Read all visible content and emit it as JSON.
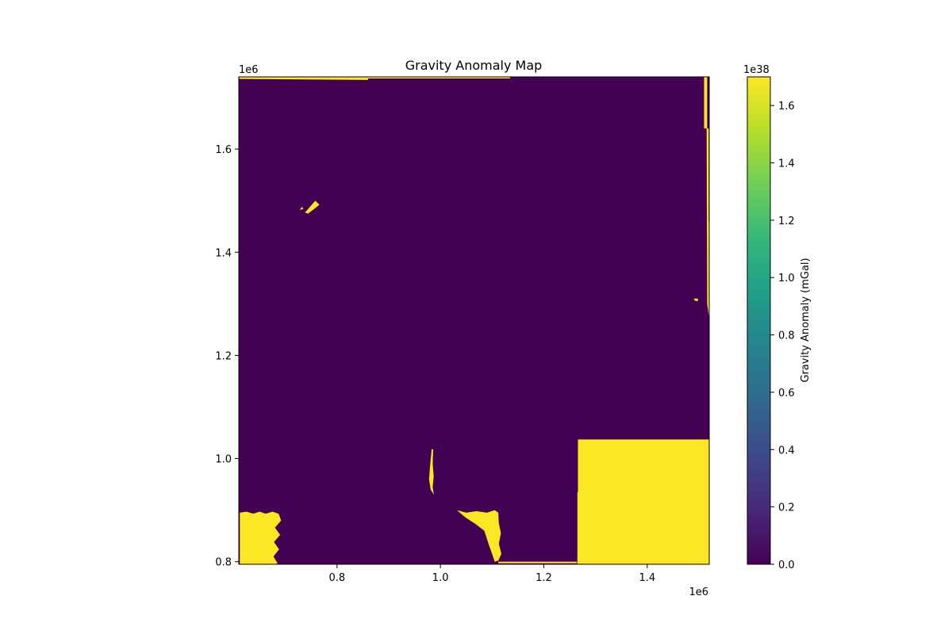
{
  "chart_data": {
    "type": "heatmap",
    "title": "Gravity Anomaly Map",
    "xlabel": "",
    "ylabel": "",
    "x_offset_label": "1e6",
    "y_offset_label": "1e6",
    "xlim": [
      0.61,
      1.52
    ],
    "ylim": [
      0.795,
      1.74
    ],
    "x_ticks": [
      {
        "value": 0.8,
        "label": "0.8"
      },
      {
        "value": 1.0,
        "label": "1.0"
      },
      {
        "value": 1.2,
        "label": "1.2"
      },
      {
        "value": 1.4,
        "label": "1.4"
      }
    ],
    "y_ticks": [
      {
        "value": 0.8,
        "label": "0.8"
      },
      {
        "value": 1.0,
        "label": "1.0"
      },
      {
        "value": 1.2,
        "label": "1.2"
      },
      {
        "value": 1.4,
        "label": "1.4"
      },
      {
        "value": 1.6,
        "label": "1.6"
      }
    ],
    "grid": false,
    "colormap": "viridis",
    "background_value": 0.0,
    "background_color": "#440154",
    "high_color": "#fde725",
    "high_regions": [
      {
        "name": "southeast-block",
        "value": 1.7,
        "points": [
          [
            1.265,
            0.8
          ],
          [
            1.265,
            0.935
          ],
          [
            1.266,
            0.935
          ],
          [
            1.266,
            1.037
          ],
          [
            1.52,
            1.037
          ],
          [
            1.52,
            0.795
          ],
          [
            1.265,
            0.795
          ]
        ]
      },
      {
        "name": "southwest-block",
        "value": 1.7,
        "points": [
          [
            0.612,
            0.795
          ],
          [
            0.612,
            0.895
          ],
          [
            0.625,
            0.897
          ],
          [
            0.638,
            0.893
          ],
          [
            0.65,
            0.897
          ],
          [
            0.662,
            0.893
          ],
          [
            0.675,
            0.897
          ],
          [
            0.687,
            0.893
          ],
          [
            0.692,
            0.88
          ],
          [
            0.68,
            0.866
          ],
          [
            0.69,
            0.852
          ],
          [
            0.678,
            0.838
          ],
          [
            0.688,
            0.824
          ],
          [
            0.677,
            0.81
          ],
          [
            0.685,
            0.797
          ],
          [
            0.68,
            0.795
          ]
        ]
      },
      {
        "name": "south-central-block",
        "value": 1.7,
        "points": [
          [
            1.032,
            0.9
          ],
          [
            1.05,
            0.895
          ],
          [
            1.07,
            0.898
          ],
          [
            1.09,
            0.895
          ],
          [
            1.105,
            0.9
          ],
          [
            1.112,
            0.895
          ],
          [
            1.113,
            0.875
          ],
          [
            1.117,
            0.855
          ],
          [
            1.113,
            0.835
          ],
          [
            1.118,
            0.815
          ],
          [
            1.112,
            0.802
          ],
          [
            1.105,
            0.8
          ],
          [
            1.1,
            0.815
          ],
          [
            1.093,
            0.835
          ],
          [
            1.085,
            0.86
          ],
          [
            1.068,
            0.873
          ],
          [
            1.048,
            0.886
          ]
        ]
      },
      {
        "name": "south-edge-strip",
        "value": 1.7,
        "points": [
          [
            1.112,
            0.797
          ],
          [
            1.264,
            0.797
          ],
          [
            1.264,
            0.8
          ],
          [
            1.112,
            0.8
          ]
        ]
      },
      {
        "name": "central-speckles",
        "value": 1.7,
        "points": [
          [
            0.983,
            1.018
          ],
          [
            0.986,
            1.018
          ],
          [
            0.985,
            0.99
          ],
          [
            0.987,
            0.965
          ],
          [
            0.985,
            0.945
          ],
          [
            0.987,
            0.93
          ],
          [
            0.981,
            0.94
          ],
          [
            0.978,
            0.96
          ],
          [
            0.98,
            0.985
          ]
        ]
      },
      {
        "name": "northwest-patch",
        "value": 1.7,
        "points": [
          [
            0.738,
            1.477
          ],
          [
            0.752,
            1.493
          ],
          [
            0.758,
            1.5
          ],
          [
            0.766,
            1.492
          ],
          [
            0.756,
            1.484
          ],
          [
            0.744,
            1.475
          ]
        ]
      },
      {
        "name": "northwest-speck",
        "value": 1.7,
        "points": [
          [
            0.728,
            1.482
          ],
          [
            0.732,
            1.488
          ],
          [
            0.735,
            1.484
          ]
        ]
      },
      {
        "name": "north-edge-strip",
        "value": 1.7,
        "points": [
          [
            0.611,
            1.74
          ],
          [
            0.86,
            1.74
          ],
          [
            0.86,
            1.734
          ],
          [
            0.611,
            1.736
          ]
        ]
      },
      {
        "name": "north-edge-strip-2",
        "value": 1.7,
        "points": [
          [
            0.86,
            1.74
          ],
          [
            1.135,
            1.74
          ],
          [
            1.135,
            1.737
          ],
          [
            0.86,
            1.737
          ]
        ]
      },
      {
        "name": "east-edge-strip",
        "value": 1.7,
        "points": [
          [
            1.51,
            1.74
          ],
          [
            1.516,
            1.74
          ],
          [
            1.516,
            1.64
          ],
          [
            1.519,
            1.64
          ],
          [
            1.519,
            1.46
          ],
          [
            1.52,
            1.46
          ],
          [
            1.52,
            1.27
          ],
          [
            1.516,
            1.3
          ],
          [
            1.515,
            1.64
          ],
          [
            1.51,
            1.64
          ]
        ]
      },
      {
        "name": "east-speck",
        "value": 1.7,
        "points": [
          [
            1.49,
            1.31
          ],
          [
            1.498,
            1.31
          ],
          [
            1.498,
            1.305
          ],
          [
            1.492,
            1.306
          ]
        ]
      }
    ],
    "colorbar": {
      "label": "Gravity Anomaly (mGal)",
      "offset_label": "1e38",
      "min": 0.0,
      "max": 1.7,
      "ticks": [
        {
          "value": 0.0,
          "label": "0.0"
        },
        {
          "value": 0.2,
          "label": "0.2"
        },
        {
          "value": 0.4,
          "label": "0.4"
        },
        {
          "value": 0.6,
          "label": "0.6"
        },
        {
          "value": 0.8,
          "label": "0.8"
        },
        {
          "value": 1.0,
          "label": "1.0"
        },
        {
          "value": 1.2,
          "label": "1.2"
        },
        {
          "value": 1.4,
          "label": "1.4"
        },
        {
          "value": 1.6,
          "label": "1.6"
        }
      ],
      "stops": [
        "#440154",
        "#482878",
        "#3e4989",
        "#31688e",
        "#26828e",
        "#1f9e89",
        "#35b779",
        "#6ece58",
        "#b5de2b",
        "#fde725"
      ]
    }
  }
}
